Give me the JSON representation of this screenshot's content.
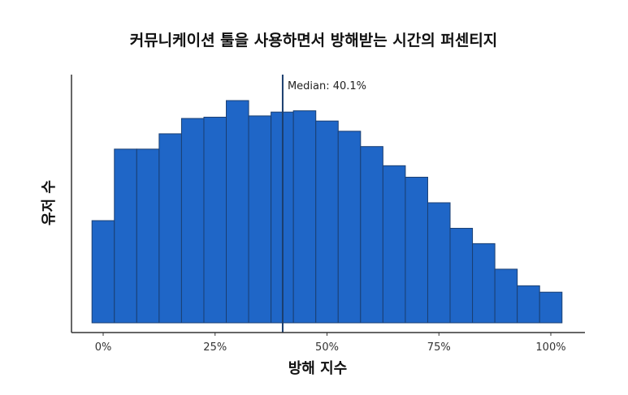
{
  "chart_data": {
    "type": "bar",
    "title": "커뮤니케이션 툴을 사용하면서 방해받는 시간의 퍼센티지",
    "xlabel": "방해 지수",
    "ylabel": "유저 수",
    "x_tick_labels": [
      "0%",
      "25%",
      "50%",
      "75%",
      "100%"
    ],
    "x_ticks": [
      0,
      25,
      50,
      75,
      100
    ],
    "xlim": [
      -5,
      105
    ],
    "ylim": [
      0,
      100
    ],
    "bin_width": 5,
    "bins": [
      {
        "start": -2.5,
        "end": 2.5,
        "value": 40
      },
      {
        "start": 2.5,
        "end": 7.5,
        "value": 68
      },
      {
        "start": 7.5,
        "end": 12.5,
        "value": 68
      },
      {
        "start": 12.5,
        "end": 17.5,
        "value": 74
      },
      {
        "start": 17.5,
        "end": 22.5,
        "value": 80
      },
      {
        "start": 22.5,
        "end": 27.5,
        "value": 80.5
      },
      {
        "start": 27.5,
        "end": 32.5,
        "value": 87
      },
      {
        "start": 32.5,
        "end": 37.5,
        "value": 81
      },
      {
        "start": 37.5,
        "end": 42.5,
        "value": 82.5
      },
      {
        "start": 42.5,
        "end": 47.5,
        "value": 83
      },
      {
        "start": 47.5,
        "end": 52.5,
        "value": 79
      },
      {
        "start": 52.5,
        "end": 57.5,
        "value": 75
      },
      {
        "start": 57.5,
        "end": 62.5,
        "value": 69
      },
      {
        "start": 62.5,
        "end": 67.5,
        "value": 61.5
      },
      {
        "start": 67.5,
        "end": 72.5,
        "value": 57
      },
      {
        "start": 72.5,
        "end": 77.5,
        "value": 47
      },
      {
        "start": 77.5,
        "end": 82.5,
        "value": 37
      },
      {
        "start": 82.5,
        "end": 87.5,
        "value": 31
      },
      {
        "start": 87.5,
        "end": 92.5,
        "value": 21
      },
      {
        "start": 92.5,
        "end": 97.5,
        "value": 14.5
      },
      {
        "start": 97.5,
        "end": 102.5,
        "value": 12
      }
    ],
    "median": {
      "value": 40.1,
      "label": "Median: 40.1%"
    },
    "colors": {
      "bar_fill": "#1f66c7",
      "bar_stroke": "#1a3f73",
      "median_line": "#1b3e6e",
      "axis": "#333333"
    },
    "grid": false,
    "legend": "none"
  }
}
